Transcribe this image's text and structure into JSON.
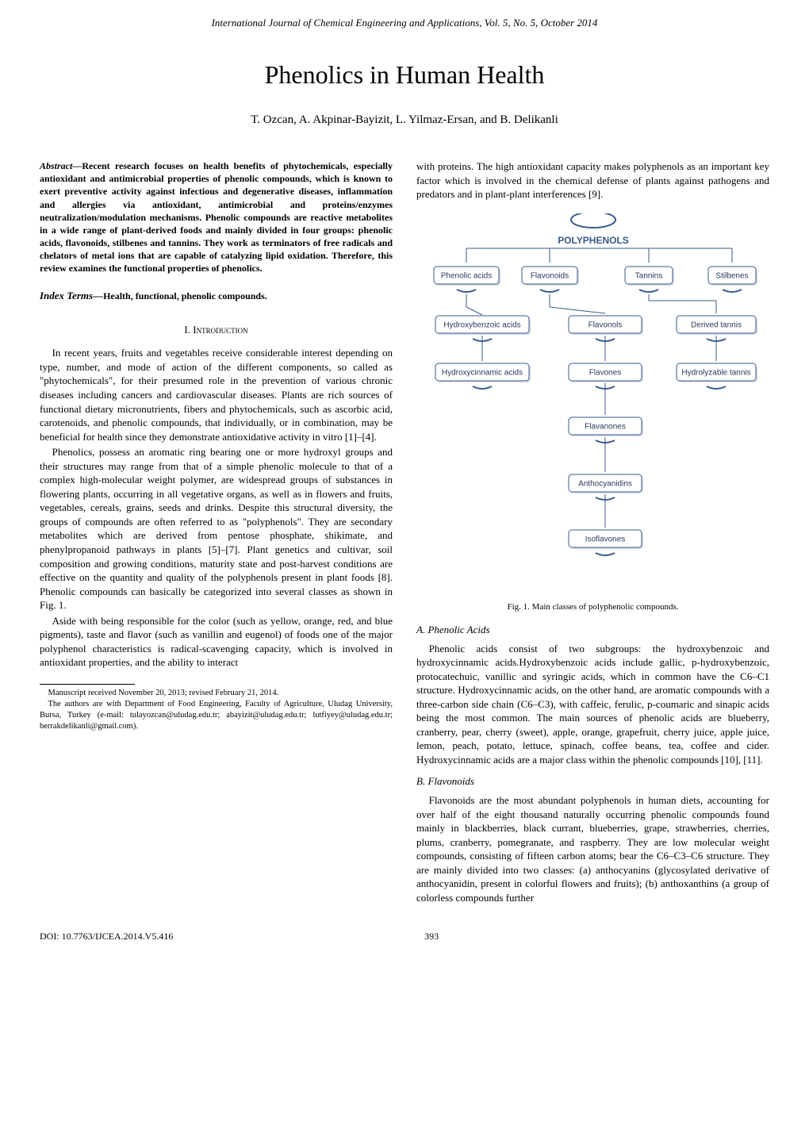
{
  "journal_header": "International Journal of Chemical Engineering and Applications, Vol. 5, No. 5, October 2014",
  "paper_title": "Phenolics in Human Health",
  "authors": "T. Ozcan, A. Akpinar-Bayizit, L. Yilmaz-Ersan, and B. Delikanli",
  "abstract_label": "Abstract—",
  "abstract_text": "Recent research focuses on health benefits of phytochemicals, especially antioxidant and antimicrobial properties of phenolic compounds, which is known to exert preventive activity against infectious and degenerative diseases, inflammation and allergies via antioxidant, antimicrobial and proteins/enzymes neutralization/modulation mechanisms. Phenolic compounds are reactive metabolites in a wide range of plant-derived foods and mainly divided in four groups: phenolic acids, flavonoids, stilbenes and tannins. They work as terminators of free radicals and chelators of metal ions that are capable of catalyzing lipid oxidation. Therefore, this review examines the functional properties of phenolics.",
  "index_terms_label": "Index Terms—",
  "index_terms_text": "Health, functional, phenolic compounds.",
  "section1_number": "I.",
  "section1_title": "Introduction",
  "intro_para1": "In recent years, fruits and vegetables receive considerable interest depending on type, number, and mode of action of the different components, so called as \"phytochemicals\", for their presumed role in the prevention of various chronic diseases including cancers and cardiovascular diseases. Plants are rich sources of functional dietary micronutrients, fibers and phytochemicals, such as ascorbic acid, carotenoids, and phenolic compounds, that individually, or in combination, may be beneficial for health since they demonstrate antioxidative activity in vitro [1]–[4].",
  "intro_para2": "Phenolics, possess an aromatic ring bearing one or more hydroxyl groups and their structures may range from that of a simple phenolic molecule to that of a complex high-molecular weight polymer, are widespread groups of substances in flowering plants, occurring in all vegetative organs, as well as in flowers and fruits, vegetables, cereals, grains, seeds and drinks. Despite this structural diversity, the groups of compounds are often referred to as \"polyphenols\". They are secondary metabolites which are derived from pentose phosphate, shikimate, and phenylpropanoid pathways in plants [5]–[7]. Plant genetics and cultivar, soil composition and growing conditions, maturity state and post-harvest conditions are effective on the quantity and quality of the polyphenols present in plant foods [8]. Phenolic compounds can basically be categorized into several classes as shown in Fig. 1.",
  "intro_para3": "Aside with being responsible for the color (such as yellow, orange, red, and blue pigments), taste and flavor (such as vanillin and eugenol) of foods one of the major polyphenol characteristics is radical-scavenging capacity, which is involved in antioxidant properties, and the ability to interact",
  "right_para1": "with proteins. The high antioxidant capacity makes polyphenols as an important key factor which is involved in the chemical defense of plants against pathogens and predators and in plant-plant interferences [9].",
  "fig1_caption": "Fig. 1. Main classes of polyphenolic compounds.",
  "subsectionA_heading": "A.  Phenolic Acids",
  "subsectionA_para": "Phenolic acids consist of two subgroups: the hydroxybenzoic and hydroxycinnamic acids.Hydroxybenzoic acids include gallic, p-hydroxybenzoic, protocatechuic, vanillic and syringic acids, which in common have the C6–C1 structure. Hydroxycinnamic acids, on the other hand, are aromatic compounds with a three-carbon side chain (C6–C3), with caffeic, ferulic, p-coumaric and sinapic acids being the most common. The main sources of phenolic acids are blueberry, cranberry, pear, cherry (sweet), apple, orange, grapefruit, cherry juice, apple juice, lemon, peach, potato, lettuce, spinach, coffee beans, tea, coffee and cider. Hydroxycinnamic acids are a major class within the phenolic compounds [10], [11].",
  "subsectionB_heading": "B.  Flavonoids",
  "subsectionB_para": "Flavonoids are the most abundant polyphenols in human diets, accounting for over half of the eight thousand naturally occurring phenolic compounds found mainly in blackberries, black currant, blueberries, grape, strawberries, cherries, plums, cranberry, pomegranate, and raspberry. They are low molecular weight compounds, consisting of fifteen carbon atoms; bear the C6–C3–C6 structure. They are mainly divided into two classes: (a) anthocyanins (glycosylated derivative of anthocyanidin, present in colorful flowers and fruits); (b) anthoxanthins (a group of colorless compounds further",
  "footnote1": "Manuscript received November 20, 2013; revised February 21, 2014.",
  "footnote2": "The authors are with Department of Food Engineering, Faculty of Agriculture, Uludag University, Bursa, Turkey (e-mail: tulayozcan@uludag.edu.tr; abayizit@uludag.edu.tr; lutfiyey@uludag.edu.tr; berrakdelikanli@gmail.com).",
  "doi": "DOI: 10.7763/IJCEA.2014.V5.416",
  "page_number": "393",
  "diagram": {
    "type": "tree",
    "root_label": "POLYPHENOLS",
    "level1": [
      "Phenolic acids",
      "Flavonoids",
      "Tannins",
      "Stilbenes"
    ],
    "phenolic_acids_children": [
      "Hydroxybenzoic acids",
      "Hydroxycinnamic acids"
    ],
    "flavonoids_children": [
      "Flavonols",
      "Flavones",
      "Flavanones",
      "Anthocyanidins",
      "Isoflavones"
    ],
    "tannins_children": [
      "Derived tannis",
      "Hydrolyzable tannis"
    ],
    "box_border_color": "#3a5a8a",
    "box_bg_color": "#ffffff",
    "line_color": "#3a5a8a",
    "shadow_color": "#b0b8c8",
    "text_color": "#2a3a5a",
    "root_text_color": "#3a5a8a",
    "font_size_label": 10,
    "font_size_root": 12,
    "box_radius": 4
  }
}
